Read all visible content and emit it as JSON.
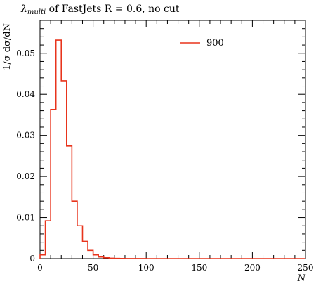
{
  "chart_data": {
    "type": "line",
    "title_symbol": "λ",
    "title_subscript": "multi",
    "title_rest": " of FastJets R = 0.6, no cut",
    "ylabel": "1/σ dσ/dN",
    "xlabel": "N",
    "xlim": [
      0,
      250
    ],
    "ylim": [
      0,
      0.058
    ],
    "xticks": [
      0,
      50,
      100,
      150,
      200,
      250
    ],
    "yticks": [
      0,
      0.01,
      0.02,
      0.03,
      0.04,
      0.05
    ],
    "ytick_labels": [
      "0",
      "0.01",
      "0.02",
      "0.03",
      "0.04",
      "0.05"
    ],
    "legend_position": "top-right",
    "series": [
      {
        "name": "900",
        "color": "#e8341c",
        "bin_width": 5,
        "bin_edges_start": 0,
        "values": [
          0.0009,
          0.0092,
          0.0363,
          0.0532,
          0.0433,
          0.0274,
          0.014,
          0.008,
          0.0042,
          0.002,
          0.0009,
          0.0004,
          0.0002,
          0.0001,
          5e-05,
          3e-05,
          2e-05,
          1e-05,
          1e-05,
          1e-05,
          0,
          0,
          0,
          0,
          0,
          0,
          0,
          0,
          0,
          0,
          0,
          0,
          0,
          0,
          0,
          0,
          0,
          0,
          0,
          0,
          0,
          0,
          0,
          0,
          0,
          0,
          0,
          0,
          0,
          0
        ]
      }
    ]
  }
}
